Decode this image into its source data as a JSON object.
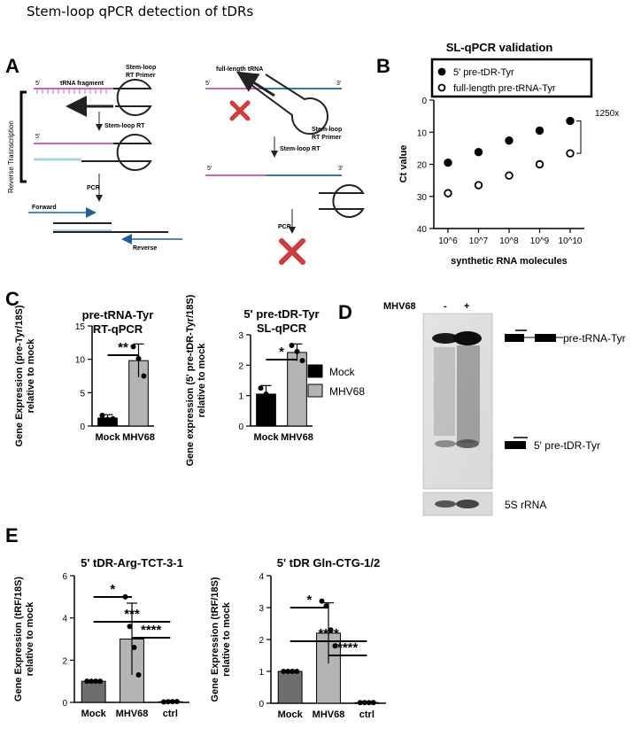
{
  "figure_title": "Stem-loop qPCR detection of tDRs",
  "panels": {
    "A": {
      "letter": "A",
      "labels": {
        "stem_loop_rt_primer": "Stem-loop",
        "stem_loop_rt_primer_2": "RT Primer",
        "trna_fragment": "tRNA fragment",
        "five_prime": "5'",
        "three_prime": "3'",
        "reverse_transcription": "Reverse Trasnscription",
        "stem_loop_rt": "Stem-loop RT",
        "pcr": "PCR",
        "forward": "Forward",
        "reverse": "Reverse",
        "full_length_trna": "full-length tRNA"
      }
    },
    "B": {
      "letter": "B",
      "annotation": "1250x"
    },
    "C": {
      "letter": "C"
    },
    "D": {
      "letter": "D",
      "condition": "MHV68",
      "lane_minus": "-",
      "lane_plus": "+",
      "band_top": "pre-tRNA-Tyr",
      "band_bottom": "5' pre-tDR-Tyr",
      "loading": "5S rRNA"
    },
    "E": {
      "letter": "E"
    }
  },
  "chart_data": [
    {
      "id": "B",
      "type": "scatter",
      "title": "SL-qPCR validation",
      "xlabel": "synthetic RNA molecules",
      "ylabel": "Ct value",
      "categories": [
        "10^6",
        "10^7",
        "10^8",
        "10^9",
        "10^10"
      ],
      "ylim": [
        40,
        0
      ],
      "yticks": [
        "0",
        "10",
        "20",
        "30",
        "40"
      ],
      "series": [
        {
          "name": "5' pre-tDR-Tyr",
          "marker": "filled",
          "values": [
            19.5,
            16.2,
            12.6,
            9.5,
            6.5
          ]
        },
        {
          "name": "full-length pre-tRNA-Tyr",
          "marker": "open",
          "values": [
            29.0,
            26.5,
            23.5,
            20.0,
            16.6
          ]
        }
      ],
      "legend": "top",
      "grid": false
    },
    {
      "id": "C1",
      "type": "bar",
      "title": "pre-tRNA-Tyr",
      "subtitle": "RT-qPCR",
      "ylabel": "Gene Expression (pre-Tyr/18S) relative to mock",
      "categories": [
        "Mock",
        "MHV68"
      ],
      "values": [
        1.2,
        9.8
      ],
      "errors": [
        0.5,
        2.5
      ],
      "points": [
        [
          1.6,
          1.0,
          1.1
        ],
        [
          11.9,
          10.1,
          7.5
        ]
      ],
      "colors": [
        "#000000",
        "#b4b4b4"
      ],
      "ylim": [
        0,
        15
      ],
      "yticks": [
        "0",
        "5",
        "10",
        "15"
      ],
      "significance": [
        {
          "from": 0,
          "to": 1,
          "label": "**"
        }
      ]
    },
    {
      "id": "C2",
      "type": "bar",
      "title": "5' pre-tDR-Tyr",
      "subtitle": "SL-qPCR",
      "ylabel": "Gene expression (5' pre-tDR-Tyr/18S) relative to mock",
      "categories": [
        "Mock",
        "MHV68"
      ],
      "values": [
        1.05,
        2.42
      ],
      "errors": [
        0.28,
        0.28
      ],
      "points": [
        [
          1.25,
          1.05,
          0.95
        ],
        [
          2.65,
          2.45,
          2.15
        ]
      ],
      "colors": [
        "#000000",
        "#b4b4b4"
      ],
      "ylim": [
        0,
        3
      ],
      "yticks": [
        "0",
        "1",
        "2",
        "3"
      ],
      "significance": [
        {
          "from": 0,
          "to": 1,
          "label": "*"
        }
      ],
      "legend": [
        {
          "name": "Mock",
          "color": "#000000"
        },
        {
          "name": "MHV68",
          "color": "#b4b4b4"
        }
      ]
    },
    {
      "id": "E1",
      "type": "bar",
      "title": "5' tDR-Arg-TCT-3-1",
      "ylabel": "Gene Expression (tRF/18S) relative to mock",
      "categories": [
        "Mock",
        "MHV68",
        "ctrl"
      ],
      "values": [
        1.0,
        3.0,
        0.03
      ],
      "errors": [
        0.03,
        1.7,
        0.02
      ],
      "points": [
        [
          1.0,
          1.0,
          1.0,
          1.0
        ],
        [
          5.0,
          3.6,
          2.6,
          1.3
        ],
        [
          0.02,
          0.03,
          0.03,
          0.04
        ]
      ],
      "colors": [
        "#6e6e6e",
        "#b4b4b4",
        "#6e6e6e"
      ],
      "ylim": [
        0,
        6
      ],
      "yticks": [
        "0",
        "2",
        "4",
        "6"
      ],
      "significance": [
        {
          "from": 0,
          "to": 2,
          "label": "***"
        },
        {
          "from": 0,
          "to": 1,
          "label": "*"
        },
        {
          "from": 1,
          "to": 2,
          "label": "****"
        }
      ]
    },
    {
      "id": "E2",
      "type": "bar",
      "title": "5' tDR Gln-CTG-1/2",
      "ylabel": "Gene Expression (tRF/18S) relative to mock",
      "categories": [
        "Mock",
        "MHV68",
        "ctrl"
      ],
      "values": [
        1.0,
        2.2,
        0.02
      ],
      "errors": [
        0.02,
        0.95,
        0.01
      ],
      "points": [
        [
          1.0,
          1.0,
          1.0,
          1.0
        ],
        [
          3.2,
          3.05,
          2.3,
          1.8
        ],
        [
          0.02,
          0.02,
          0.02,
          0.02
        ]
      ],
      "colors": [
        "#6e6e6e",
        "#b4b4b4",
        "#6e6e6e"
      ],
      "ylim": [
        0,
        4
      ],
      "yticks": [
        "0",
        "1",
        "2",
        "3",
        "4"
      ],
      "significance": [
        {
          "from": 0,
          "to": 2,
          "label": "****"
        },
        {
          "from": 0,
          "to": 1,
          "label": "*"
        },
        {
          "from": 1,
          "to": 2,
          "label": "****"
        }
      ]
    }
  ]
}
